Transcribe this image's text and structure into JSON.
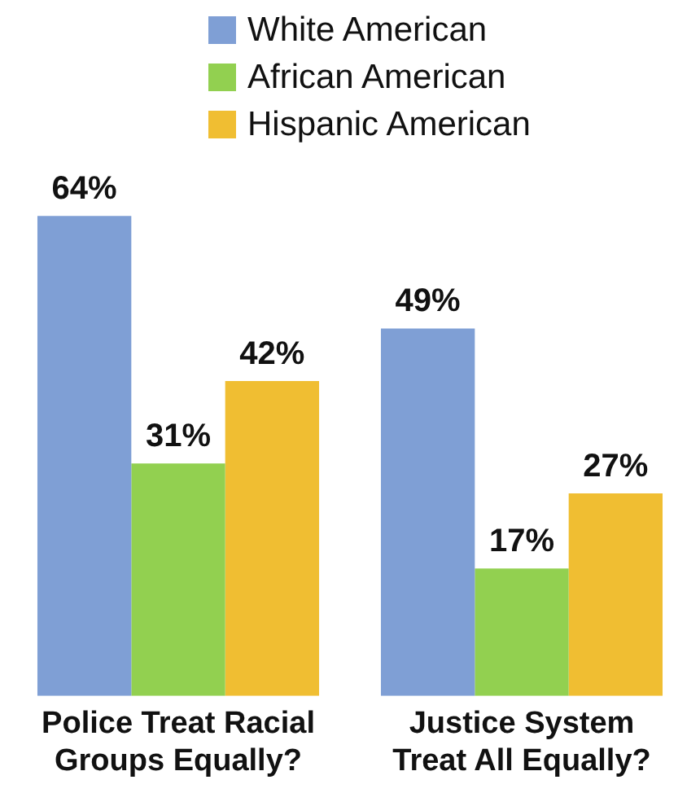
{
  "chart_data": {
    "type": "bar",
    "categories": [
      "Police Treat Racial Groups Equally?",
      "Justice System Treat All Equally?"
    ],
    "series": [
      {
        "name": "White American",
        "color": "#7f9fd5",
        "values": [
          64,
          49
        ],
        "value_labels": [
          "64%",
          "49%"
        ]
      },
      {
        "name": "African American",
        "color": "#92d050",
        "values": [
          31,
          17
        ],
        "value_labels": [
          "31%",
          "17%"
        ]
      },
      {
        "name": "Hispanic American",
        "color": "#f0be32",
        "values": [
          42,
          27
        ],
        "value_labels": [
          "42%",
          "27%"
        ]
      }
    ],
    "legend": "top right",
    "grid": false,
    "tick_labels": "x"
  }
}
